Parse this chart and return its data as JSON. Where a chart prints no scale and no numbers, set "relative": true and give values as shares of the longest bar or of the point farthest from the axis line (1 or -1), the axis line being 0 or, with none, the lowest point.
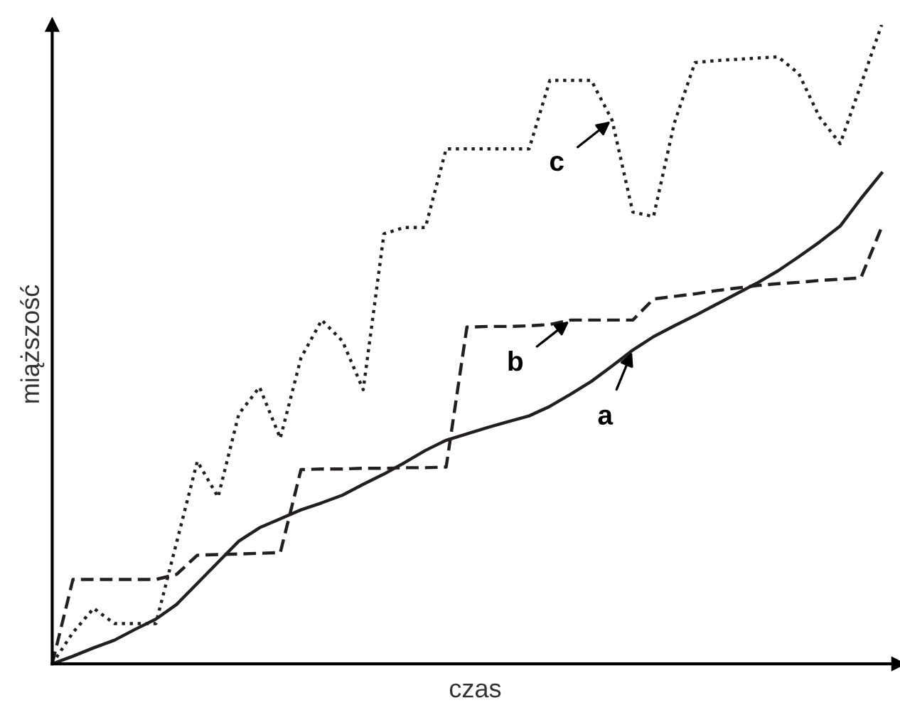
{
  "chart_data": {
    "type": "line",
    "relative": true,
    "xlabel": "czas",
    "ylabel": "miąższość",
    "legend": false,
    "marker": "none",
    "categories": [
      null,
      null,
      null,
      null,
      null,
      null,
      null,
      null,
      null,
      null,
      null,
      null,
      null,
      null,
      null,
      null,
      null,
      null,
      null,
      null,
      null,
      null,
      null,
      null,
      null,
      null,
      null,
      null,
      null,
      null,
      null,
      null,
      null,
      null,
      null,
      null,
      null,
      null,
      null,
      null,
      null
    ],
    "series": [
      {
        "color": "#231f20",
        "line_style": "solid",
        "values": [
          0,
          0.012,
          0.025,
          0.037,
          0.054,
          0.07,
          0.093,
          0.126,
          0.159,
          0.192,
          0.213,
          0.227,
          0.241,
          0.252,
          0.264,
          0.281,
          0.297,
          0.315,
          0.334,
          0.35,
          0.36,
          0.37,
          0.379,
          0.388,
          0.403,
          0.422,
          0.442,
          0.466,
          0.491,
          0.512,
          0.529,
          0.545,
          0.562,
          0.579,
          0.596,
          0.615,
          0.637,
          0.66,
          0.685,
          0.728,
          0.768
        ]
      },
      {
        "color": "#231f20",
        "line_style": "dashed",
        "values": [
          0,
          0.132,
          0.132,
          0.132,
          0.132,
          0.132,
          0.14,
          0.17,
          0.171,
          0.172,
          0.173,
          0.174,
          0.304,
          0.305,
          0.305,
          0.306,
          0.306,
          0.307,
          0.307,
          0.308,
          0.527,
          0.528,
          0.528,
          0.529,
          0.531,
          0.538,
          0.538,
          0.538,
          0.538,
          0.571,
          0.575,
          0.579,
          0.584,
          0.588,
          0.592,
          0.595,
          0.597,
          0.6,
          0.602,
          0.604,
          0.683
        ]
      },
      {
        "color": "#231f20",
        "line_style": "dotted",
        "values": [
          0,
          0.049,
          0.087,
          0.063,
          0.063,
          0.063,
          0.19,
          0.317,
          0.261,
          0.391,
          0.433,
          0.353,
          0.479,
          0.538,
          0.505,
          0.429,
          0.673,
          0.683,
          0.683,
          0.806,
          0.806,
          0.806,
          0.806,
          0.806,
          0.913,
          0.913,
          0.913,
          0.851,
          0.707,
          0.7,
          0.846,
          0.941,
          0.944,
          0.946,
          0.948,
          0.95,
          0.924,
          0.856,
          0.814,
          0.906,
          1.0
        ]
      }
    ],
    "annotations": [
      "a",
      "b",
      "c"
    ]
  }
}
